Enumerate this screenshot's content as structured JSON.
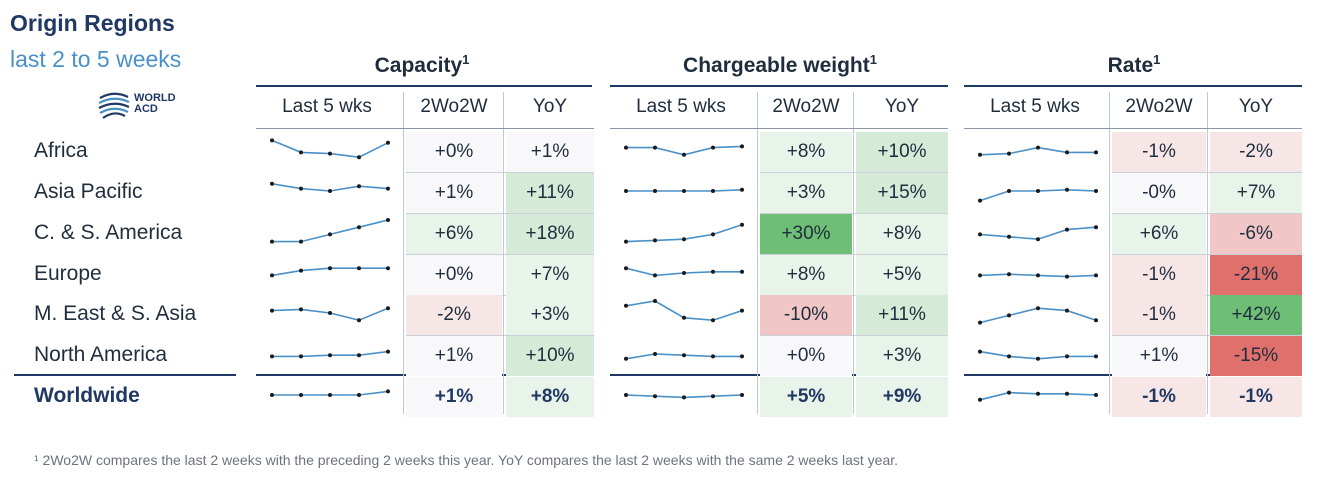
{
  "title": "Origin Regions",
  "subtitle": "last 2 to 5 weeks",
  "logo": {
    "line1": "WORLD",
    "line2": "ACD"
  },
  "footnote": "¹ 2Wo2W compares the last 2 weeks with the preceding 2 weeks this year. YoY compares the last 2 weeks with the same 2 weeks last year.",
  "sections": [
    {
      "title": "Capacity",
      "sup": "1"
    },
    {
      "title": "Chargeable weight",
      "sup": "1"
    },
    {
      "title": "Rate",
      "sup": "1"
    }
  ],
  "columns": [
    "Last 5 wks",
    "2Wo2W",
    "YoY"
  ],
  "rows": [
    {
      "label": "Africa",
      "cap_2w": "+0%",
      "cap_yoy": "+1%",
      "cw_2w": "+8%",
      "cw_yoy": "+10%",
      "rate_2w": "-1%",
      "rate_yoy": "-2%"
    },
    {
      "label": "Asia Pacific",
      "cap_2w": "+1%",
      "cap_yoy": "+11%",
      "cw_2w": "+3%",
      "cw_yoy": "+15%",
      "rate_2w": "-0%",
      "rate_yoy": "+7%"
    },
    {
      "label": "C. & S. America",
      "cap_2w": "+6%",
      "cap_yoy": "+18%",
      "cw_2w": "+30%",
      "cw_yoy": "+8%",
      "rate_2w": "+6%",
      "rate_yoy": "-6%"
    },
    {
      "label": "Europe",
      "cap_2w": "+0%",
      "cap_yoy": "+7%",
      "cw_2w": "+8%",
      "cw_yoy": "+5%",
      "rate_2w": "-1%",
      "rate_yoy": "-21%"
    },
    {
      "label": "M. East & S. Asia",
      "cap_2w": "-2%",
      "cap_yoy": "+3%",
      "cw_2w": "-10%",
      "cw_yoy": "+11%",
      "rate_2w": "-1%",
      "rate_yoy": "+42%"
    },
    {
      "label": "North America",
      "cap_2w": "+1%",
      "cap_yoy": "+10%",
      "cw_2w": "+0%",
      "cw_yoy": "+3%",
      "rate_2w": "+1%",
      "rate_yoy": "-15%"
    },
    {
      "label": "Worldwide",
      "cap_2w": "+1%",
      "cap_yoy": "+8%",
      "cw_2w": "+5%",
      "cw_yoy": "+9%",
      "rate_2w": "-1%",
      "rate_yoy": "-1%"
    }
  ],
  "chart_data": {
    "type": "table",
    "title": "Origin Regions — last 2 to 5 weeks",
    "categories": [
      "Africa",
      "Asia Pacific",
      "C. & S. America",
      "Europe",
      "M. East & S. Asia",
      "North America",
      "Worldwide"
    ],
    "sparkline_note": "relative index, 5 weekly points, shapes approximated",
    "series": [
      {
        "name": "Capacity 2Wo2W",
        "values": [
          0,
          1,
          6,
          0,
          -2,
          1,
          1
        ]
      },
      {
        "name": "Capacity YoY",
        "values": [
          1,
          11,
          18,
          7,
          3,
          10,
          8
        ]
      },
      {
        "name": "Chargeable weight 2Wo2W",
        "values": [
          8,
          3,
          30,
          8,
          -10,
          0,
          5
        ]
      },
      {
        "name": "Chargeable weight YoY",
        "values": [
          10,
          15,
          8,
          5,
          11,
          3,
          9
        ]
      },
      {
        "name": "Rate 2Wo2W",
        "values": [
          -1,
          0,
          6,
          -1,
          -1,
          1,
          -1
        ]
      },
      {
        "name": "Rate YoY",
        "values": [
          -2,
          7,
          -6,
          -21,
          42,
          -15,
          -1
        ]
      }
    ],
    "sparklines": {
      "capacity": [
        [
          9,
          4,
          3.5,
          2,
          8
        ],
        [
          8,
          6,
          5,
          7,
          6
        ],
        [
          1,
          1,
          4,
          7,
          10
        ],
        [
          4,
          6,
          7,
          7,
          7
        ],
        [
          6,
          6.5,
          5,
          2,
          7
        ],
        [
          4,
          4,
          4.5,
          4.5,
          6
        ]
      ],
      "capacity_ww": [
        5,
        5,
        5,
        5,
        6.5
      ],
      "chargeable": [
        [
          6,
          6,
          3,
          6,
          6.5
        ],
        [
          5,
          5,
          5,
          5,
          5.5
        ],
        [
          1,
          1.5,
          2,
          4,
          8
        ],
        [
          7,
          4,
          5,
          5.5,
          5.5
        ],
        [
          8,
          10,
          3,
          2,
          6
        ],
        [
          3,
          5,
          4.5,
          4,
          4
        ]
      ],
      "chargeable_ww": [
        5,
        4.5,
        4,
        4.5,
        5
      ],
      "rate": [
        [
          3,
          3.5,
          6,
          4,
          4
        ],
        [
          1,
          5,
          5,
          5.5,
          5
        ],
        [
          4,
          3,
          2,
          6,
          7
        ],
        [
          4,
          4.5,
          4,
          3.5,
          4
        ],
        [
          1,
          4,
          7,
          6,
          2
        ],
        [
          6,
          4,
          3,
          4,
          4
        ]
      ],
      "rate_ww": [
        3,
        6,
        5.5,
        5.5,
        5
      ]
    },
    "colors": {
      "line": "#4a90c8",
      "marker": "#1a1a1a",
      "pos_light": "#e8f3ea",
      "pos_mid": "#d5ead7",
      "pos_strong": "#6fbe75",
      "neg_light": "#f7e6e6",
      "neg_mid": "#f0c6c6",
      "neg_strong": "#e0706c",
      "neutral": "#f8f8fb"
    }
  }
}
